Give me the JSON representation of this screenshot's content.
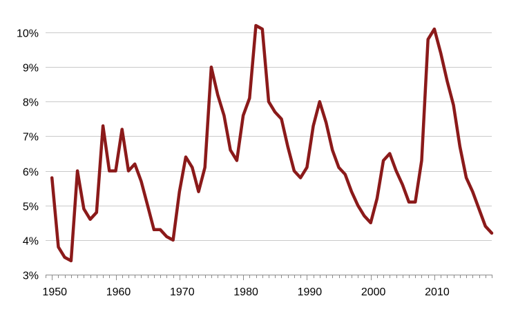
{
  "chart_data": {
    "type": "line",
    "title": "",
    "xlabel": "",
    "ylabel": "",
    "xlim": [
      1949,
      2019
    ],
    "ylim": [
      3,
      10.5
    ],
    "grid": "horizontal",
    "legend": "none",
    "x_ticks": [
      {
        "value": 1950,
        "label": "1950"
      },
      {
        "value": 1960,
        "label": "1960"
      },
      {
        "value": 1970,
        "label": "1970"
      },
      {
        "value": 1980,
        "label": "1980"
      },
      {
        "value": 1990,
        "label": "1990"
      },
      {
        "value": 2000,
        "label": "2000"
      },
      {
        "value": 2010,
        "label": "2010"
      }
    ],
    "y_ticks": [
      {
        "value": 3,
        "label": "3%"
      },
      {
        "value": 4,
        "label": "4%"
      },
      {
        "value": 5,
        "label": "5%"
      },
      {
        "value": 6,
        "label": "6%"
      },
      {
        "value": 7,
        "label": "7%"
      },
      {
        "value": 8,
        "label": "8%"
      },
      {
        "value": 9,
        "label": "9%"
      },
      {
        "value": 10,
        "label": "10%"
      }
    ],
    "series": [
      {
        "color": "#8b1a1a",
        "x": [
          1950,
          1951,
          1952,
          1953,
          1954,
          1955,
          1956,
          1957,
          1958,
          1959,
          1960,
          1961,
          1962,
          1963,
          1964,
          1965,
          1966,
          1967,
          1968,
          1969,
          1970,
          1971,
          1972,
          1973,
          1974,
          1975,
          1976,
          1977,
          1978,
          1979,
          1980,
          1981,
          1982,
          1983,
          1984,
          1985,
          1986,
          1987,
          1988,
          1989,
          1990,
          1991,
          1992,
          1993,
          1994,
          1995,
          1996,
          1997,
          1998,
          1999,
          2000,
          2001,
          2002,
          2003,
          2004,
          2005,
          2006,
          2007,
          2008,
          2009,
          2010,
          2011,
          2012,
          2013,
          2014,
          2015,
          2016,
          2017,
          2018,
          2019
        ],
        "values": [
          5.8,
          3.8,
          3.5,
          3.4,
          6.0,
          4.9,
          4.6,
          4.8,
          7.3,
          6.0,
          6.0,
          7.2,
          6.0,
          6.2,
          5.7,
          5.0,
          4.3,
          4.3,
          4.1,
          4.0,
          5.4,
          6.4,
          6.1,
          5.4,
          6.1,
          9.0,
          8.2,
          7.6,
          6.6,
          6.3,
          7.6,
          8.1,
          10.2,
          10.1,
          8.0,
          7.7,
          7.5,
          6.7,
          6.0,
          5.8,
          6.1,
          7.3,
          8.0,
          7.4,
          6.6,
          6.1,
          5.9,
          5.4,
          5.0,
          4.7,
          4.5,
          5.2,
          6.3,
          6.5,
          6.0,
          5.6,
          5.1,
          5.1,
          6.3,
          9.8,
          10.1,
          9.4,
          8.6,
          7.9,
          6.7,
          5.8,
          5.4,
          4.9,
          4.4,
          4.2
        ]
      }
    ]
  }
}
